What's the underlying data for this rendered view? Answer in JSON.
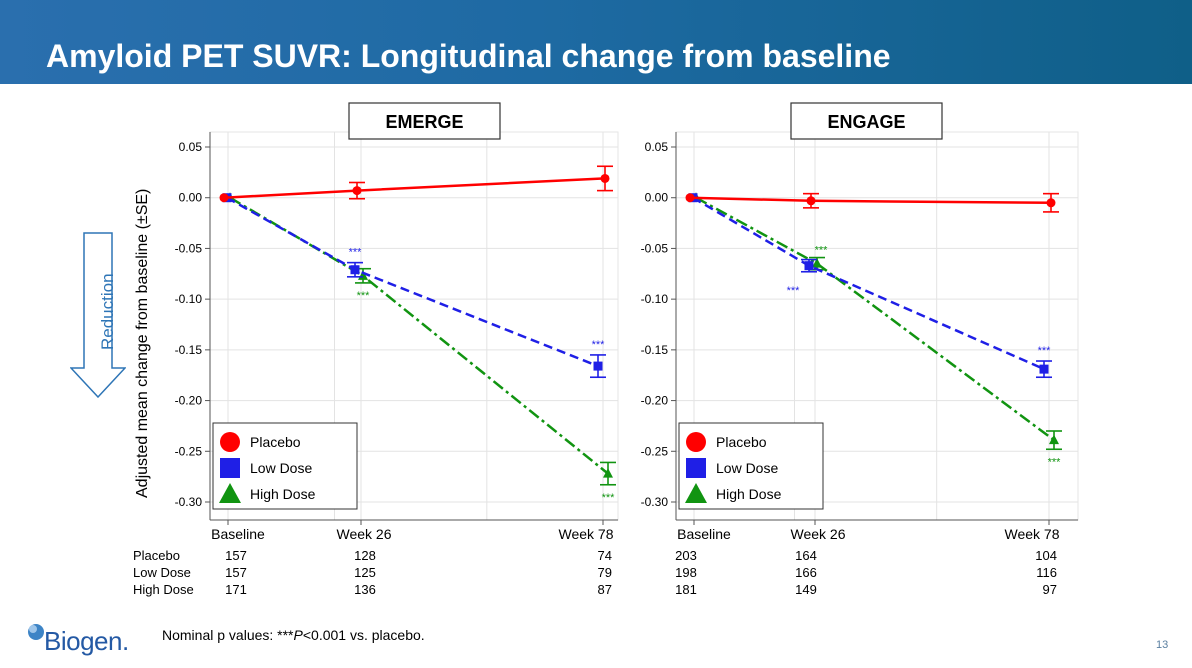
{
  "slide": {
    "title": "Amyloid PET SUVR: Longitudinal change from baseline",
    "reduction_label": "Reduction",
    "ylabel": "Adjusted mean change from baseline (±SE)",
    "footnote": "Nominal p values: ***P<0.001 vs. placebo.",
    "page_number": "13",
    "logo_text": "Biogen."
  },
  "colors": {
    "header": "#1e6aa3",
    "placebo": "#ff0000",
    "low_dose": "#1f1fe6",
    "high_dose": "#119411",
    "arrow": "#2e75b6"
  },
  "icons": {
    "reduction": "down-arrow-outline-icon",
    "logo": "biogen-logo-icon",
    "placebo_marker": "circle",
    "low_dose_marker": "square",
    "high_dose_marker": "triangle"
  },
  "chart_data": [
    {
      "type": "line",
      "title": "EMERGE",
      "x": [
        "Baseline",
        "Week 26",
        "Week 78"
      ],
      "ylim": [
        -0.3,
        0.05
      ],
      "yticks": [
        "0.05",
        "0.00",
        "-0.05",
        "-0.10",
        "-0.15",
        "-0.20",
        "-0.25",
        "-0.30"
      ],
      "grid": true,
      "legend_position": "bottom-left",
      "series": [
        {
          "name": "Placebo",
          "values": [
            0.0,
            0.007,
            0.019
          ],
          "se": [
            0.0,
            0.008,
            0.012
          ],
          "stars": [
            "",
            "",
            ""
          ],
          "n": [
            "157",
            "128",
            "74"
          ]
        },
        {
          "name": "Low Dose",
          "values": [
            0.0,
            -0.071,
            -0.166
          ],
          "se": [
            0.0,
            0.007,
            0.011
          ],
          "stars": [
            "",
            "***",
            "***"
          ],
          "n": [
            "157",
            "125",
            "79"
          ]
        },
        {
          "name": "High Dose",
          "values": [
            0.0,
            -0.077,
            -0.272
          ],
          "se": [
            0.0,
            0.007,
            0.011
          ],
          "stars": [
            "",
            "***",
            "***"
          ],
          "n": [
            "171",
            "136",
            "87"
          ]
        }
      ]
    },
    {
      "type": "line",
      "title": "ENGAGE",
      "x": [
        "Baseline",
        "Week 26",
        "Week 78"
      ],
      "ylim": [
        -0.3,
        0.05
      ],
      "yticks": [
        "0.05",
        "0.00",
        "-0.05",
        "-0.10",
        "-0.15",
        "-0.20",
        "-0.25",
        "-0.30"
      ],
      "grid": true,
      "legend_position": "bottom-left",
      "series": [
        {
          "name": "Placebo",
          "values": [
            0.0,
            -0.003,
            -0.005
          ],
          "se": [
            0.0,
            0.007,
            0.009
          ],
          "stars": [
            "",
            "",
            ""
          ],
          "n": [
            "203",
            "164",
            "104"
          ]
        },
        {
          "name": "Low Dose",
          "values": [
            0.0,
            -0.067,
            -0.169
          ],
          "se": [
            0.0,
            0.006,
            0.008
          ],
          "stars": [
            "",
            "***",
            "***"
          ],
          "n": [
            "198",
            "166",
            "116"
          ]
        },
        {
          "name": "High Dose",
          "values": [
            0.0,
            -0.065,
            -0.239
          ],
          "se": [
            0.0,
            0.006,
            0.009
          ],
          "stars": [
            "",
            "***",
            "***"
          ],
          "n": [
            "181",
            "149",
            "97"
          ]
        }
      ]
    }
  ]
}
